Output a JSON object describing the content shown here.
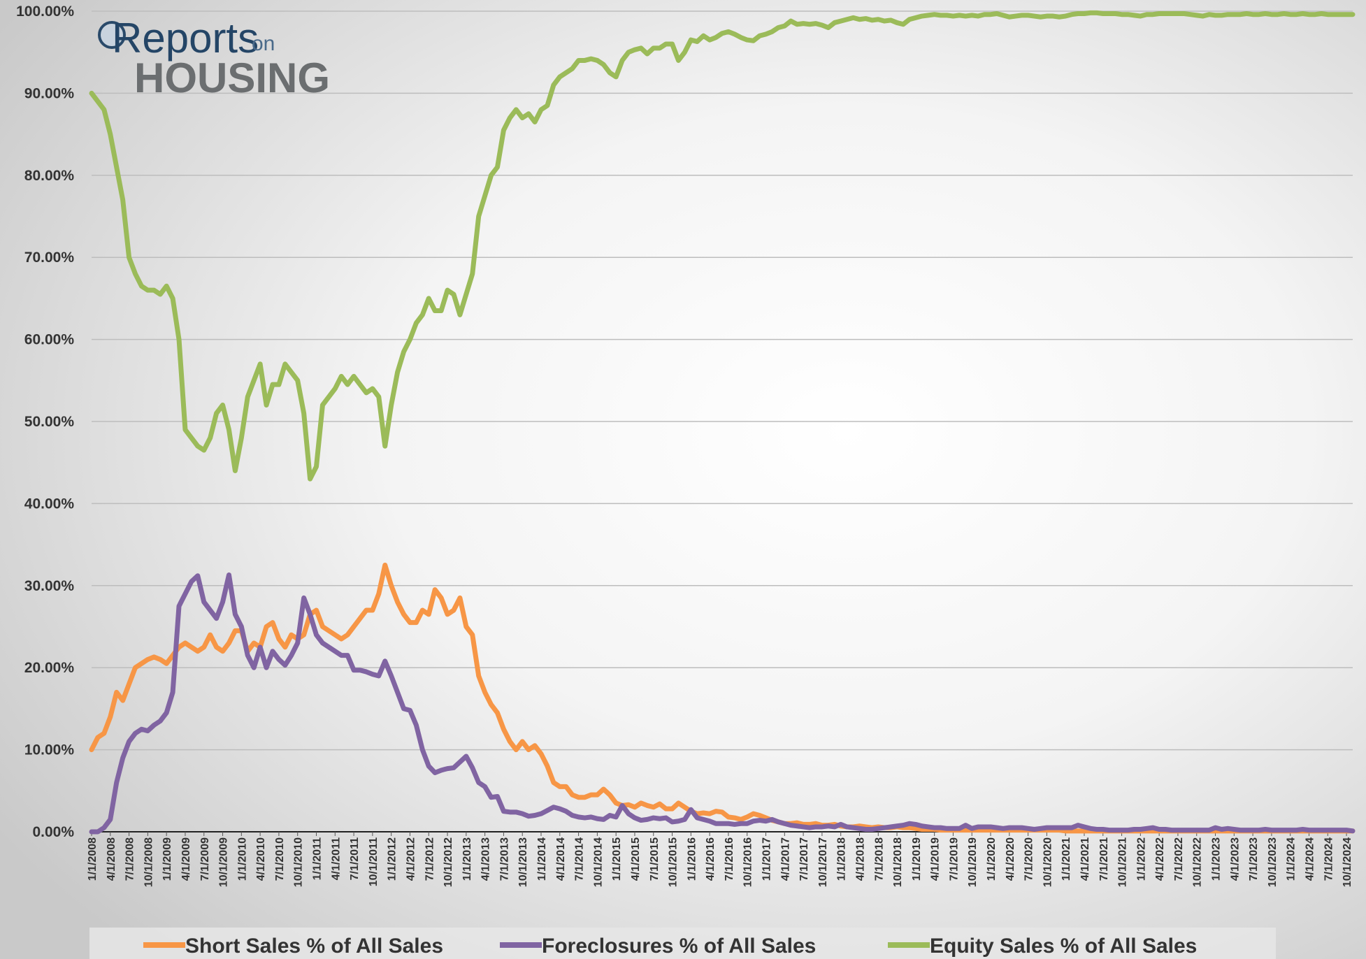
{
  "chart_data": {
    "type": "line",
    "logo": {
      "brand": "Reports",
      "connector": "on",
      "subject": "HOUSING"
    },
    "categories": [
      "1/1/2008",
      null,
      null,
      "4/1/2008",
      null,
      null,
      "7/1/2008",
      null,
      null,
      "10/1/2008",
      null,
      null,
      "1/1/2009",
      null,
      null,
      "4/1/2009",
      null,
      null,
      "7/1/2009",
      null,
      null,
      "10/1/2009",
      null,
      null,
      "1/1/2010",
      null,
      null,
      "4/1/2010",
      null,
      null,
      "7/1/2010",
      null,
      null,
      "10/1/2010",
      null,
      null,
      "1/1/2011",
      null,
      null,
      "4/1/2011",
      null,
      null,
      "7/1/2011",
      null,
      null,
      "10/1/2011",
      null,
      null,
      "1/1/2012",
      null,
      null,
      "4/1/2012",
      null,
      null,
      "7/1/2012",
      null,
      null,
      "10/1/2012",
      null,
      null,
      "1/1/2013",
      null,
      null,
      "4/1/2013",
      null,
      null,
      "7/1/2013",
      null,
      null,
      "10/1/2013",
      null,
      null,
      "1/1/2014",
      null,
      null,
      "4/1/2014",
      null,
      null,
      "7/1/2014",
      null,
      null,
      "10/1/2014",
      null,
      null,
      "1/1/2015",
      null,
      null,
      "4/1/2015",
      null,
      null,
      "7/1/2015",
      null,
      null,
      "10/1/2015",
      null,
      null,
      "1/1/2016",
      null,
      null,
      "4/1/2016",
      null,
      null,
      "7/1/2016",
      null,
      null,
      "10/1/2016",
      null,
      null,
      "1/1/2017",
      null,
      null,
      "4/1/2017",
      null,
      null,
      "7/1/2017",
      null,
      null,
      "10/1/2017",
      null,
      null,
      "1/1/2018",
      null,
      null,
      "4/1/2018",
      null,
      null,
      "7/1/2018",
      null,
      null,
      "10/1/2018",
      null,
      null,
      "1/1/2019",
      null,
      null,
      "4/1/2019",
      null,
      null,
      "7/1/2019",
      null,
      null,
      "10/1/2019",
      null,
      null,
      "1/1/2020",
      null,
      null,
      "4/1/2020",
      null,
      null,
      "7/1/2020",
      null,
      null,
      "10/1/2020",
      null,
      null,
      "1/1/2021",
      null,
      null,
      "4/1/2021",
      null,
      null,
      "7/1/2021",
      null,
      null,
      "10/1/2021",
      null,
      null,
      "1/1/2022",
      null,
      null,
      "4/1/2022",
      null,
      null,
      "7/1/2022",
      null,
      null,
      "10/1/2022",
      null,
      null,
      "1/1/2023",
      null,
      null,
      "4/1/2023",
      null,
      null,
      "7/1/2023",
      null,
      null,
      "10/1/2023",
      null,
      null,
      "1/1/2024",
      null,
      null,
      "4/1/2024",
      null,
      null,
      "7/1/2024",
      null,
      null,
      "10/1/2024",
      null
    ],
    "series": [
      {
        "name": "Short Sales % of All Sales",
        "color": "#f79646",
        "values": [
          10,
          11.5,
          12,
          14,
          17,
          16,
          18,
          20,
          20.5,
          21,
          21.3,
          21,
          20.5,
          21.5,
          22.5,
          23,
          22.5,
          22,
          22.5,
          24,
          22.5,
          22,
          23,
          24.5,
          24.5,
          22,
          23,
          22.5,
          25,
          25.5,
          23.5,
          22.5,
          24,
          23.5,
          24,
          26.5,
          27,
          25,
          24.5,
          24,
          23.5,
          24,
          25,
          26,
          27,
          27,
          29,
          32.5,
          30,
          28,
          26.5,
          25.5,
          25.5,
          27,
          26.5,
          29.5,
          28.5,
          26.5,
          27,
          28.5,
          25,
          24,
          19,
          17,
          15.5,
          14.5,
          12.5,
          11,
          10,
          11,
          10,
          10.5,
          9.5,
          8,
          6,
          5.5,
          5.5,
          4.5,
          4.2,
          4.2,
          4.5,
          4.5,
          5.2,
          4.5,
          3.5,
          3.2,
          3.3,
          3,
          3.5,
          3.2,
          3,
          3.4,
          2.8,
          2.8,
          3.5,
          3,
          2.5,
          2.2,
          2.3,
          2.2,
          2.5,
          2.4,
          1.8,
          1.7,
          1.5,
          1.8,
          2.2,
          2,
          1.7,
          1.4,
          1.2,
          1,
          1,
          1.1,
          0.9,
          0.9,
          1,
          0.8,
          0.8,
          0.9,
          0.7,
          0.6,
          0.6,
          0.7,
          0.6,
          0.5,
          0.6,
          0.5,
          0.5,
          0.6,
          0.5,
          0.5,
          0.4,
          0.3,
          0.3,
          0.3,
          0.2,
          0.2,
          0.2,
          0.2,
          0.2,
          0.2,
          0.2,
          0.2,
          0.2,
          0.2,
          0.2,
          0.2,
          0.2,
          0.2,
          0.2,
          0.2,
          0.2,
          0.2,
          0.2,
          0.2,
          0.1,
          0.1,
          0.1,
          0.1,
          0.1,
          0.1,
          0.1,
          0.1,
          0.1,
          0.1,
          0.1,
          0.1,
          0.1,
          0.1,
          0.1,
          0.1,
          0.1,
          0.1,
          0.1,
          0.1,
          0.1,
          0.1,
          0.1,
          0.1,
          0.1,
          0.1,
          0.1,
          0.1,
          0.1,
          0.1,
          0.1,
          0.1,
          0.1,
          0.1,
          0.1,
          0.1,
          0.1,
          0.1,
          0.1,
          0.1,
          0.1,
          0.1,
          0.1,
          0.1,
          0.1,
          0.1,
          0.1
        ]
      },
      {
        "name": "Foreclosures % of All Sales",
        "color": "#8064a2",
        "values": [
          0,
          0,
          0.5,
          1.5,
          6,
          9,
          11,
          12,
          12.5,
          12.3,
          13,
          13.5,
          14.5,
          17,
          27.5,
          29,
          30.5,
          31.2,
          28,
          27,
          26,
          28,
          31.3,
          26.5,
          25,
          21.5,
          20,
          22.5,
          20,
          22,
          21,
          20.3,
          21.5,
          23,
          28.5,
          26.5,
          24,
          23,
          22.5,
          22,
          21.5,
          21.5,
          19.7,
          19.7,
          19.5,
          19.2,
          19,
          20.8,
          19,
          17,
          15,
          14.8,
          13,
          10,
          8,
          7.2,
          7.5,
          7.7,
          7.8,
          8.5,
          9.2,
          7.8,
          6,
          5.5,
          4.2,
          4.3,
          2.5,
          2.4,
          2.4,
          2.2,
          1.9,
          2,
          2.2,
          2.6,
          3,
          2.8,
          2.5,
          2,
          1.8,
          1.7,
          1.8,
          1.6,
          1.5,
          2,
          1.8,
          3.2,
          2.2,
          1.7,
          1.4,
          1.5,
          1.7,
          1.6,
          1.7,
          1.2,
          1.3,
          1.5,
          2.7,
          1.7,
          1.5,
          1.3,
          1,
          1,
          1,
          0.9,
          1,
          1,
          1.3,
          1.4,
          1.3,
          1.5,
          1.2,
          1,
          0.8,
          0.7,
          0.6,
          0.5,
          0.6,
          0.6,
          0.7,
          0.6,
          0.9,
          0.6,
          0.5,
          0.4,
          0.3,
          0.3,
          0.4,
          0.5,
          0.6,
          0.7,
          0.8,
          1,
          0.9,
          0.7,
          0.6,
          0.5,
          0.5,
          0.4,
          0.4,
          0.4,
          0.8,
          0.4,
          0.6,
          0.6,
          0.6,
          0.5,
          0.4,
          0.5,
          0.5,
          0.5,
          0.4,
          0.3,
          0.4,
          0.5,
          0.5,
          0.5,
          0.5,
          0.5,
          0.8,
          0.6,
          0.4,
          0.3,
          0.3,
          0.2,
          0.2,
          0.2,
          0.2,
          0.3,
          0.3,
          0.4,
          0.5,
          0.3,
          0.3,
          0.2,
          0.2,
          0.2,
          0.2,
          0.2,
          0.2,
          0.2,
          0.5,
          0.3,
          0.4,
          0.3,
          0.2,
          0.2,
          0.2,
          0.2,
          0.3,
          0.2,
          0.2,
          0.2,
          0.2,
          0.2,
          0.3,
          0.2,
          0.2,
          0.2,
          0.2,
          0.2,
          0.2,
          0.2,
          0.1
        ]
      },
      {
        "name": "Equity Sales % of All Sales",
        "color": "#9bbb59",
        "values": [
          90,
          89,
          88,
          85,
          81,
          77,
          70,
          68,
          66.5,
          66,
          66,
          65.5,
          66.5,
          65,
          60,
          49,
          48,
          47,
          46.5,
          48,
          51,
          52,
          49,
          44,
          48,
          53,
          55,
          57,
          52,
          54.5,
          54.5,
          57,
          56,
          55,
          51,
          43,
          44.5,
          52,
          53,
          54,
          55.5,
          54.5,
          55.5,
          54.5,
          53.5,
          54,
          53,
          47,
          52,
          56,
          58.5,
          60,
          62,
          63,
          65,
          63.5,
          63.5,
          66,
          65.5,
          63,
          65.5,
          68,
          75,
          77.5,
          80,
          81,
          85.5,
          87,
          88,
          87,
          87.5,
          86.5,
          88,
          88.5,
          91,
          92,
          92.5,
          93,
          94,
          94,
          94.2,
          94,
          93.5,
          92.5,
          92,
          94,
          95,
          95.3,
          95.5,
          94.8,
          95.5,
          95.5,
          96,
          96,
          94,
          95,
          96.5,
          96.3,
          97,
          96.5,
          96.8,
          97.3,
          97.5,
          97.2,
          96.8,
          96.5,
          96.4,
          97,
          97.2,
          97.5,
          98,
          98.2,
          98.8,
          98.4,
          98.5,
          98.4,
          98.5,
          98.3,
          98,
          98.6,
          98.8,
          99,
          99.2,
          99,
          99.1,
          98.9,
          99,
          98.8,
          98.9,
          98.6,
          98.4,
          99,
          99.2,
          99.4,
          99.5,
          99.6,
          99.5,
          99.5,
          99.4,
          99.5,
          99.4,
          99.5,
          99.4,
          99.6,
          99.6,
          99.7,
          99.5,
          99.3,
          99.4,
          99.5,
          99.5,
          99.4,
          99.3,
          99.4,
          99.4,
          99.3,
          99.4,
          99.6,
          99.7,
          99.7,
          99.8,
          99.8,
          99.7,
          99.7,
          99.7,
          99.6,
          99.6,
          99.5,
          99.4,
          99.6,
          99.6,
          99.7,
          99.7,
          99.7,
          99.7,
          99.7,
          99.6,
          99.5,
          99.4,
          99.6,
          99.5,
          99.5,
          99.6,
          99.6,
          99.6,
          99.7,
          99.6,
          99.6,
          99.7,
          99.6,
          99.6,
          99.7,
          99.6,
          99.6,
          99.7,
          99.6,
          99.6,
          99.7,
          99.6,
          99.6,
          99.6,
          99.6,
          99.6
        ]
      }
    ],
    "ylim": [
      0,
      100
    ],
    "yticks": [
      {
        "value": 0,
        "label": "0.00%"
      },
      {
        "value": 10,
        "label": "10.00%"
      },
      {
        "value": 20,
        "label": "20.00%"
      },
      {
        "value": 30,
        "label": "30.00%"
      },
      {
        "value": 40,
        "label": "40.00%"
      },
      {
        "value": 50,
        "label": "50.00%"
      },
      {
        "value": 60,
        "label": "60.00%"
      },
      {
        "value": 70,
        "label": "70.00%"
      },
      {
        "value": 80,
        "label": "80.00%"
      },
      {
        "value": 90,
        "label": "90.00%"
      },
      {
        "value": 100,
        "label": "100.00%"
      }
    ],
    "grid": true,
    "legend": "bottom"
  }
}
